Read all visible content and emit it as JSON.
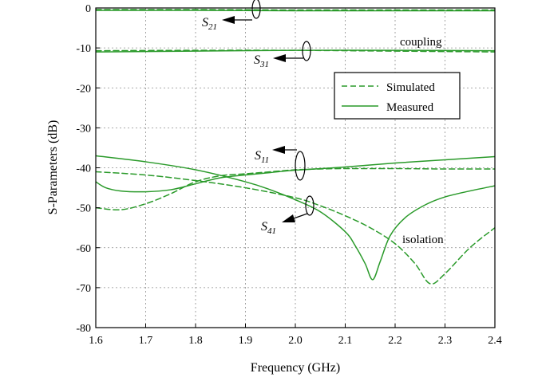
{
  "chart_data": {
    "type": "line",
    "title": "",
    "xlabel": "Frequency (GHz)",
    "ylabel": "S-Parameters (dB)",
    "xlim": [
      1.6,
      2.4
    ],
    "ylim": [
      -80,
      0
    ],
    "xticks": [
      1.6,
      1.7,
      1.8,
      1.9,
      2.0,
      2.1,
      2.2,
      2.3,
      2.4
    ],
    "xtick_labels": [
      "1.6",
      "1.7",
      "1.8",
      "1.9",
      "2.0",
      "2.1",
      "2.2",
      "2.3",
      "2.4"
    ],
    "yticks": [
      0,
      -10,
      -20,
      -30,
      -40,
      -50,
      -60,
      -70,
      -80
    ],
    "ytick_labels": [
      "0",
      "-10",
      "-20",
      "-30",
      "-40",
      "-50",
      "-60",
      "-70",
      "-80"
    ],
    "grid": true,
    "legend": {
      "position": "upper-right",
      "entries": [
        {
          "label": "Simulated",
          "style": "dashed"
        },
        {
          "label": "Measured",
          "style": "solid"
        }
      ]
    },
    "color": "#2a9a2a",
    "series": [
      {
        "name": "S21 Simulated",
        "param": "S21",
        "style": "dashed",
        "x": [
          1.6,
          1.8,
          2.0,
          2.2,
          2.4
        ],
        "y": [
          -0.4,
          -0.4,
          -0.5,
          -0.5,
          -0.5
        ]
      },
      {
        "name": "S21 Measured",
        "param": "S21",
        "style": "solid",
        "x": [
          1.6,
          1.8,
          2.0,
          2.2,
          2.4
        ],
        "y": [
          -0.6,
          -0.6,
          -0.7,
          -0.7,
          -0.7
        ]
      },
      {
        "name": "S31 Simulated",
        "param": "S31",
        "style": "dashed",
        "x": [
          1.6,
          1.8,
          2.0,
          2.2,
          2.4
        ],
        "y": [
          -10.7,
          -10.6,
          -10.6,
          -10.8,
          -11.0
        ]
      },
      {
        "name": "S31 Measured",
        "param": "S31",
        "style": "solid",
        "x": [
          1.6,
          1.8,
          2.0,
          2.2,
          2.4
        ],
        "y": [
          -11.0,
          -10.8,
          -10.6,
          -10.6,
          -10.7
        ]
      },
      {
        "name": "S11 Simulated",
        "param": "S11",
        "style": "dashed",
        "x": [
          1.6,
          1.65,
          1.7,
          1.75,
          1.8,
          1.85,
          1.9,
          1.95,
          2.0,
          2.05,
          2.1,
          2.2,
          2.3,
          2.4
        ],
        "y": [
          -50,
          -50.5,
          -49,
          -46.5,
          -43.5,
          -42,
          -41.5,
          -41,
          -40.5,
          -40.3,
          -40.2,
          -40.2,
          -40.3,
          -40.3
        ]
      },
      {
        "name": "S11 Measured",
        "param": "S11",
        "style": "solid",
        "x": [
          1.6,
          1.62,
          1.65,
          1.7,
          1.75,
          1.8,
          1.85,
          1.9,
          1.95,
          2.0,
          2.1,
          2.2,
          2.3,
          2.4
        ],
        "y": [
          -43.5,
          -45,
          -45.8,
          -46,
          -45.5,
          -44,
          -42.5,
          -41.8,
          -41.2,
          -40.6,
          -39.8,
          -38.8,
          -38,
          -37.2
        ]
      },
      {
        "name": "S41 Simulated",
        "param": "S41",
        "style": "dashed",
        "x": [
          1.6,
          1.7,
          1.8,
          1.9,
          2.0,
          2.05,
          2.1,
          2.15,
          2.2,
          2.24,
          2.27,
          2.3,
          2.35,
          2.4
        ],
        "y": [
          -41,
          -41.8,
          -43.2,
          -45,
          -47.5,
          -49.5,
          -52,
          -55,
          -59,
          -64,
          -69,
          -66.5,
          -60,
          -55
        ]
      },
      {
        "name": "S41 Measured",
        "param": "S41",
        "style": "solid",
        "x": [
          1.6,
          1.7,
          1.8,
          1.9,
          1.95,
          2.0,
          2.05,
          2.1,
          2.12,
          2.14,
          2.155,
          2.17,
          2.19,
          2.22,
          2.26,
          2.3,
          2.35,
          2.4
        ],
        "y": [
          -37,
          -38.5,
          -40.5,
          -43.5,
          -45.5,
          -48,
          -51,
          -56,
          -59.5,
          -64,
          -68,
          -63.5,
          -57,
          -52.5,
          -49.3,
          -47.3,
          -45.8,
          -44.5
        ]
      }
    ],
    "annotations": {
      "s21": {
        "letter": "S",
        "sub": "21"
      },
      "s31": {
        "letter": "S",
        "sub": "31"
      },
      "s11": {
        "letter": "S",
        "sub": "11"
      },
      "s41": {
        "letter": "S",
        "sub": "41"
      },
      "coupling": "coupling",
      "isolation": "isolation"
    }
  }
}
